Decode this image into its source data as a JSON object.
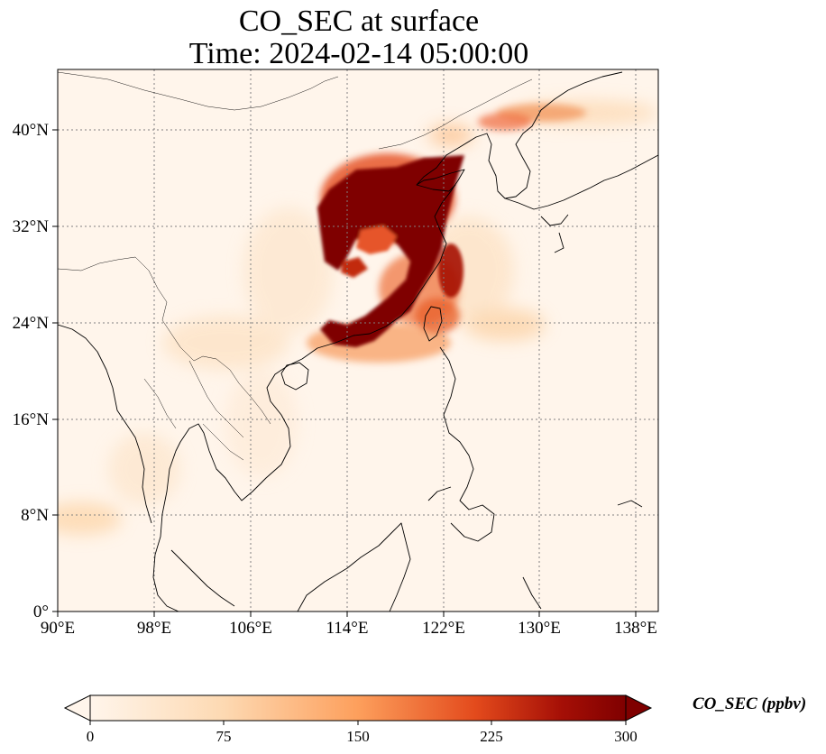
{
  "title": {
    "line1": "CO_SEC at surface",
    "line2": "Time: 2024-02-14 05:00:00"
  },
  "map": {
    "lon_ticks": [
      "90°E",
      "98°E",
      "106°E",
      "114°E",
      "122°E",
      "130°E",
      "138°E"
    ],
    "lat_ticks": [
      "0°",
      "8°N",
      "16°N",
      "24°N",
      "32°N",
      "40°N"
    ],
    "lon_range": [
      90,
      140
    ],
    "lat_range": [
      0,
      45
    ],
    "grid": "dotted"
  },
  "colorbar": {
    "label": "CO_SEC (ppbv)",
    "ticks": [
      "0",
      "75",
      "150",
      "225",
      "300"
    ],
    "range": [
      0,
      300
    ],
    "colormap": [
      "#fff5eb",
      "#fdd9b2",
      "#fd9f5c",
      "#e34a1c",
      "#a50f06",
      "#7f0000"
    ]
  }
}
